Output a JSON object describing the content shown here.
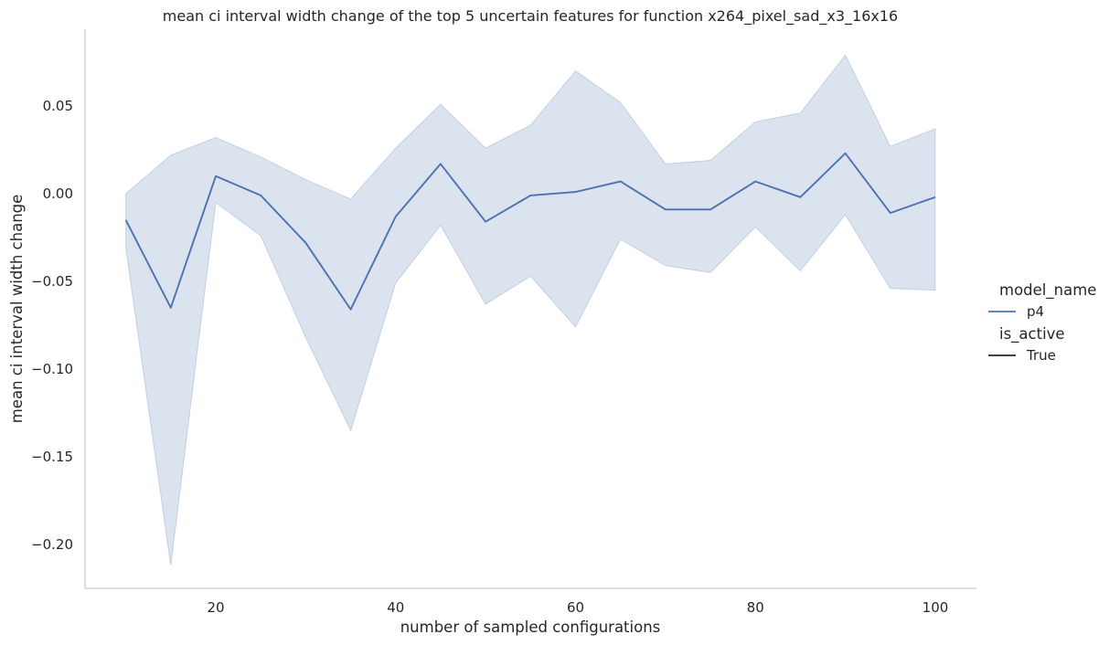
{
  "chart_data": {
    "type": "line",
    "title": "mean ci interval width change of the top 5 uncertain features for function x264_pixel_sad_x3_16x16",
    "xlabel": "number of sampled configurations",
    "ylabel": "mean ci interval width change",
    "xlim": [
      5,
      105
    ],
    "ylim": [
      -0.225,
      0.095
    ],
    "x_ticks": [
      20,
      40,
      60,
      80,
      100
    ],
    "y_ticks": [
      -0.2,
      -0.15,
      -0.1,
      -0.05,
      0.0,
      0.05
    ],
    "y_tick_labels": [
      "−0.20",
      "−0.15",
      "−0.10",
      "−0.05",
      "0.00",
      "0.05"
    ],
    "grid": false,
    "legend_placement": "right",
    "colors": {
      "line": "#4c72b0",
      "band": "#4c72b0",
      "axis": "#cccccc",
      "text": "#262626"
    },
    "series": [
      {
        "name": "p4",
        "x": [
          10,
          15,
          20,
          25,
          30,
          35,
          40,
          45,
          50,
          55,
          60,
          65,
          70,
          75,
          80,
          85,
          90,
          95,
          100
        ],
        "y": [
          -0.015,
          -0.065,
          0.01,
          -0.001,
          -0.028,
          -0.066,
          -0.013,
          0.017,
          -0.016,
          -0.001,
          0.001,
          0.007,
          -0.009,
          -0.009,
          0.007,
          -0.002,
          0.023,
          -0.011,
          -0.002
        ],
        "ci_upper": [
          0.0,
          0.022,
          0.032,
          0.021,
          0.008,
          -0.003,
          0.026,
          0.051,
          0.026,
          0.039,
          0.07,
          0.052,
          0.017,
          0.019,
          0.041,
          0.046,
          0.079,
          0.027,
          0.037
        ],
        "ci_lower": [
          -0.031,
          -0.212,
          -0.005,
          -0.024,
          -0.082,
          -0.135,
          -0.051,
          -0.018,
          -0.063,
          -0.047,
          -0.076,
          -0.026,
          -0.041,
          -0.045,
          -0.019,
          -0.044,
          -0.012,
          -0.054,
          -0.055
        ]
      }
    ],
    "legend": {
      "hue_title": "model_name",
      "hue_entries": [
        {
          "label": "p4",
          "color": "#4c72b0"
        }
      ],
      "style_title": "is_active",
      "style_entries": [
        {
          "label": "True",
          "color": "#262626"
        }
      ]
    }
  }
}
